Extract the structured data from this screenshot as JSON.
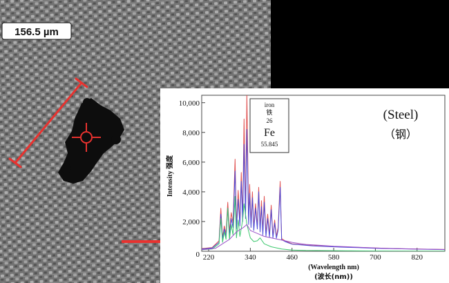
{
  "micrograph": {
    "scale_label": "156.5 µm"
  },
  "element_card": {
    "name_en": "iron",
    "name_zh": "铁",
    "atomic_number": "26",
    "symbol": "Fe",
    "atomic_mass": "55.845"
  },
  "sample_label": {
    "en": "(Steel)",
    "zh": "（钢）"
  },
  "colors": {
    "background": "#000000",
    "scale_bar": "#e8322f",
    "pointer_arrow": "#e8322f",
    "series_red": "#e05050",
    "series_blue": "#4a4ad8",
    "series_green": "#3cc86e",
    "series_purple": "#9a4fc8"
  },
  "chart_data": {
    "type": "line",
    "title": "",
    "xlabel_en": "(Wavelength nm)",
    "xlabel_zh": "(波长(nm))",
    "ylabel": "Intensity 强度",
    "xlim": [
      200,
      900
    ],
    "ylim": [
      0,
      10500
    ],
    "x_ticks": [
      "220",
      "340",
      "460",
      "580",
      "700",
      "820"
    ],
    "x_tick_values": [
      220,
      340,
      460,
      580,
      700,
      820
    ],
    "y_ticks": [
      "2,000",
      "4,000",
      "6,000",
      "8,000",
      "10,000"
    ],
    "y_tick_values": [
      2000,
      4000,
      6000,
      8000,
      10000
    ],
    "baseline_label": "0",
    "grid": false,
    "series": [
      {
        "color": "#e05050",
        "x": [
          200,
          230,
          250,
          255,
          260,
          265,
          270,
          275,
          280,
          285,
          290,
          296,
          300,
          305,
          310,
          314,
          318,
          322,
          326,
          330,
          335,
          338,
          342,
          346,
          350,
          355,
          360,
          364,
          368,
          372,
          376,
          380,
          385,
          390,
          395,
          400,
          405,
          410,
          415,
          420,
          426,
          430,
          440,
          450,
          460,
          480,
          500,
          520,
          560,
          600,
          650,
          700,
          750,
          800,
          850,
          900
        ],
        "y": [
          180,
          250,
          700,
          2900,
          900,
          1700,
          1200,
          3300,
          1300,
          2600,
          1900,
          6200,
          1700,
          4100,
          2000,
          5300,
          2300,
          8900,
          2500,
          10600,
          2100,
          4500,
          1800,
          4000,
          1600,
          3200,
          1700,
          4300,
          1500,
          3400,
          1300,
          3700,
          1200,
          2500,
          1100,
          3100,
          1000,
          2100,
          1000,
          1600,
          4700,
          850,
          700,
          600,
          500,
          460,
          420,
          380,
          340,
          300,
          260,
          220,
          180,
          160,
          140,
          120
        ]
      },
      {
        "color": "#4a4ad8",
        "x": [
          200,
          230,
          250,
          255,
          260,
          265,
          270,
          275,
          280,
          285,
          290,
          296,
          300,
          305,
          310,
          314,
          318,
          322,
          326,
          330,
          335,
          338,
          342,
          346,
          350,
          355,
          360,
          364,
          368,
          372,
          376,
          380,
          385,
          390,
          395,
          400,
          405,
          410,
          415,
          420,
          426,
          430,
          440,
          450,
          460,
          480,
          500,
          520,
          560,
          600,
          650,
          700,
          750,
          800,
          850,
          900
        ],
        "y": [
          150,
          220,
          600,
          2500,
          800,
          1500,
          1000,
          2900,
          1100,
          2200,
          1600,
          5400,
          1500,
          3500,
          1700,
          4700,
          2000,
          7200,
          2200,
          8200,
          1800,
          3900,
          1600,
          3600,
          1400,
          2900,
          1500,
          4000,
          1300,
          3000,
          1100,
          3300,
          1000,
          2200,
          950,
          2800,
          900,
          1900,
          880,
          1400,
          4300,
          780,
          650,
          560,
          480,
          440,
          400,
          360,
          320,
          280,
          240,
          200,
          170,
          150,
          130,
          110
        ]
      },
      {
        "color": "#3cc86e",
        "x": [
          200,
          230,
          250,
          255,
          260,
          265,
          270,
          275,
          280,
          285,
          290,
          296,
          300,
          305,
          310,
          318,
          322,
          330,
          340,
          350,
          360,
          368,
          380,
          400,
          430,
          460,
          500,
          560,
          620,
          700,
          800,
          900
        ],
        "y": [
          100,
          150,
          500,
          2200,
          600,
          1300,
          800,
          2900,
          800,
          1800,
          1100,
          3700,
          900,
          2100,
          1000,
          2100,
          3200,
          1800,
          900,
          650,
          700,
          900,
          500,
          300,
          150,
          80,
          50,
          40,
          30,
          20,
          10,
          10
        ]
      },
      {
        "color": "#9a4fc8",
        "x": [
          200,
          240,
          260,
          280,
          300,
          320,
          330,
          340,
          360,
          380,
          400,
          420,
          440,
          460,
          480,
          500,
          540,
          580,
          620,
          660,
          700,
          760,
          820,
          900
        ],
        "y": [
          100,
          200,
          500,
          800,
          1300,
          1600,
          1800,
          1400,
          1200,
          1000,
          900,
          800,
          700,
          600,
          520,
          460,
          400,
          340,
          300,
          260,
          220,
          180,
          150,
          120
        ]
      }
    ]
  }
}
